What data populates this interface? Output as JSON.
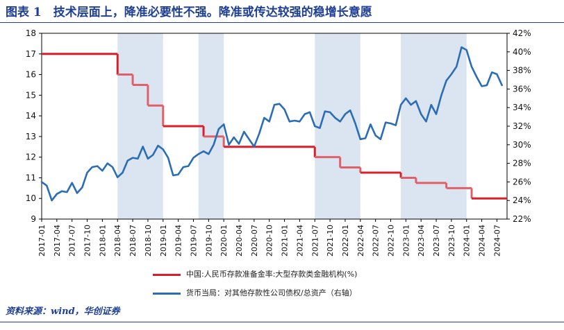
{
  "header": {
    "title": "图表 1　技术层面上，降准必要性不强。降准或传达较强的稳增长意愿"
  },
  "footer": {
    "source": "资料来源：wind，华创证券"
  },
  "chart_data": {
    "type": "line",
    "title": "图表 1　技术层面上，降准必要性不强。降准或传达较强的稳增长意愿",
    "xlabel": "",
    "ylabel": "",
    "x_start": "2017-01",
    "x_end": "2024-09",
    "x_ticks": [
      "2017-01",
      "2017-04",
      "2017-07",
      "2017-10",
      "2018-01",
      "2018-04",
      "2018-07",
      "2018-10",
      "2019-01",
      "2019-04",
      "2019-07",
      "2019-10",
      "2020-01",
      "2020-04",
      "2020-07",
      "2020-10",
      "2021-01",
      "2021-04",
      "2021-07",
      "2021-10",
      "2022-01",
      "2022-04",
      "2022-07",
      "2022-10",
      "2023-01",
      "2023-04",
      "2023-07",
      "2023-10",
      "2024-01",
      "2024-04",
      "2024-07"
    ],
    "y_left": {
      "min": 9,
      "max": 18,
      "ticks": [
        9,
        10,
        11,
        12,
        13,
        14,
        15,
        16,
        17,
        18
      ]
    },
    "y_right": {
      "min": 22,
      "max": 42,
      "ticks": [
        22,
        24,
        26,
        28,
        30,
        32,
        34,
        36,
        38,
        40,
        42
      ],
      "unit": "%"
    },
    "grid": false,
    "legend_position": "bottom",
    "shaded_periods": [
      {
        "start": "2018-04",
        "end": "2019-01"
      },
      {
        "start": "2019-08",
        "end": "2020-01"
      },
      {
        "start": "2021-07",
        "end": "2022-04"
      },
      {
        "start": "2022-12",
        "end": "2024-01"
      }
    ],
    "colors": {
      "red": "#d9202a",
      "red_in_shading": "#e0606a",
      "blue": "#2a6db4",
      "shade": "#dbe5f1"
    },
    "series": [
      {
        "name": "中国:人民币存款准备金率:大型存款类金融机构(%)",
        "axis": "left",
        "color": "#d9202a",
        "step": true,
        "points": [
          [
            "2017-01",
            17.0
          ],
          [
            "2018-04",
            16.0
          ],
          [
            "2018-07",
            15.5
          ],
          [
            "2018-10",
            14.5
          ],
          [
            "2019-01",
            13.5
          ],
          [
            "2019-09",
            13.0
          ],
          [
            "2020-01",
            12.5
          ],
          [
            "2021-07",
            12.0
          ],
          [
            "2021-12",
            11.5
          ],
          [
            "2022-04",
            11.25
          ],
          [
            "2022-12",
            11.0
          ],
          [
            "2023-03",
            10.75
          ],
          [
            "2023-09",
            10.5
          ],
          [
            "2024-02",
            10.0
          ],
          [
            "2024-09",
            10.0
          ]
        ]
      },
      {
        "name": "货币当局：对其他存款性公司债权/总资产（右轴）",
        "axis": "right",
        "color": "#2a6db4",
        "step": false,
        "points": [
          [
            "2017-01",
            26.0
          ],
          [
            "2017-02",
            25.6
          ],
          [
            "2017-03",
            24.0
          ],
          [
            "2017-04",
            24.7
          ],
          [
            "2017-05",
            25.0
          ],
          [
            "2017-06",
            24.9
          ],
          [
            "2017-07",
            25.9
          ],
          [
            "2017-08",
            24.8
          ],
          [
            "2017-09",
            25.4
          ],
          [
            "2017-10",
            27.0
          ],
          [
            "2017-11",
            27.6
          ],
          [
            "2017-12",
            27.7
          ],
          [
            "2018-01",
            27.2
          ],
          [
            "2018-02",
            28.0
          ],
          [
            "2018-03",
            27.6
          ],
          [
            "2018-04",
            26.5
          ],
          [
            "2018-05",
            27.0
          ],
          [
            "2018-06",
            28.3
          ],
          [
            "2018-07",
            28.6
          ],
          [
            "2018-08",
            28.5
          ],
          [
            "2018-09",
            29.8
          ],
          [
            "2018-10",
            28.5
          ],
          [
            "2018-11",
            28.9
          ],
          [
            "2018-12",
            29.9
          ],
          [
            "2019-01",
            29.5
          ],
          [
            "2019-02",
            28.6
          ],
          [
            "2019-03",
            26.7
          ],
          [
            "2019-04",
            26.8
          ],
          [
            "2019-05",
            27.6
          ],
          [
            "2019-06",
            27.7
          ],
          [
            "2019-07",
            28.6
          ],
          [
            "2019-08",
            29.0
          ],
          [
            "2019-09",
            29.3
          ],
          [
            "2019-10",
            29.0
          ],
          [
            "2019-11",
            30.0
          ],
          [
            "2019-12",
            31.7
          ],
          [
            "2020-01",
            32.2
          ],
          [
            "2020-02",
            30.0
          ],
          [
            "2020-03",
            30.8
          ],
          [
            "2020-04",
            30.1
          ],
          [
            "2020-05",
            31.4
          ],
          [
            "2020-06",
            30.6
          ],
          [
            "2020-07",
            29.8
          ],
          [
            "2020-08",
            31.2
          ],
          [
            "2020-09",
            32.9
          ],
          [
            "2020-10",
            32.5
          ],
          [
            "2020-11",
            34.3
          ],
          [
            "2020-12",
            34.4
          ],
          [
            "2021-01",
            33.8
          ],
          [
            "2021-02",
            32.5
          ],
          [
            "2021-03",
            32.6
          ],
          [
            "2021-04",
            32.5
          ],
          [
            "2021-05",
            33.3
          ],
          [
            "2021-06",
            33.5
          ],
          [
            "2021-07",
            32.0
          ],
          [
            "2021-08",
            31.8
          ],
          [
            "2021-09",
            33.6
          ],
          [
            "2021-10",
            33.5
          ],
          [
            "2021-11",
            32.9
          ],
          [
            "2021-12",
            32.5
          ],
          [
            "2022-01",
            33.3
          ],
          [
            "2022-02",
            33.7
          ],
          [
            "2022-03",
            32.3
          ],
          [
            "2022-04",
            30.6
          ],
          [
            "2022-05",
            30.7
          ],
          [
            "2022-06",
            32.2
          ],
          [
            "2022-07",
            31.0
          ],
          [
            "2022-08",
            30.6
          ],
          [
            "2022-09",
            32.4
          ],
          [
            "2022-10",
            32.3
          ],
          [
            "2022-11",
            32.1
          ],
          [
            "2022-12",
            34.3
          ],
          [
            "2023-01",
            35.0
          ],
          [
            "2023-02",
            34.3
          ],
          [
            "2023-03",
            34.7
          ],
          [
            "2023-04",
            33.3
          ],
          [
            "2023-05",
            32.5
          ],
          [
            "2023-06",
            34.3
          ],
          [
            "2023-07",
            33.3
          ],
          [
            "2023-08",
            35.3
          ],
          [
            "2023-09",
            36.9
          ],
          [
            "2023-10",
            37.6
          ],
          [
            "2023-11",
            38.4
          ],
          [
            "2023-12",
            40.5
          ],
          [
            "2024-01",
            40.2
          ],
          [
            "2024-02",
            38.4
          ],
          [
            "2024-03",
            37.3
          ],
          [
            "2024-04",
            36.3
          ],
          [
            "2024-05",
            36.4
          ],
          [
            "2024-06",
            37.8
          ],
          [
            "2024-07",
            37.6
          ],
          [
            "2024-08",
            36.4
          ]
        ]
      }
    ]
  }
}
